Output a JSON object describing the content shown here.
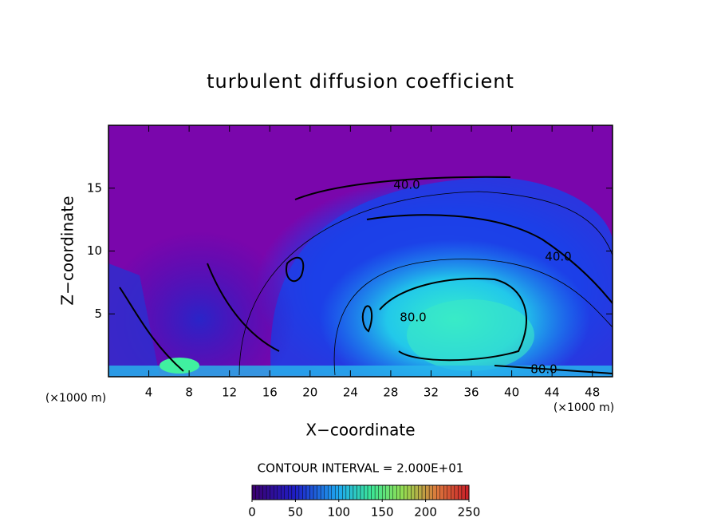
{
  "chart_data": {
    "type": "contour",
    "title": "turbulent diffusion coefficient",
    "xlabel": "X−coordinate",
    "ylabel": "Z−coordinate",
    "x_unit": "(×1000 m)",
    "y_unit": "(×1000 m)",
    "xlim": [
      0,
      50
    ],
    "ylim": [
      0,
      20
    ],
    "xticks": [
      4,
      8,
      12,
      16,
      20,
      24,
      28,
      32,
      36,
      40,
      44,
      48
    ],
    "yticks": [
      5,
      10,
      15
    ],
    "contour_labels": [
      "40.0",
      "40.0",
      "80.0",
      "80.0"
    ],
    "contour_interval_label": "CONTOUR INTERVAL = 2.000E+01",
    "colorbar": {
      "lim": [
        0,
        250
      ],
      "ticks": [
        0,
        50,
        100,
        150,
        200,
        250
      ]
    }
  }
}
